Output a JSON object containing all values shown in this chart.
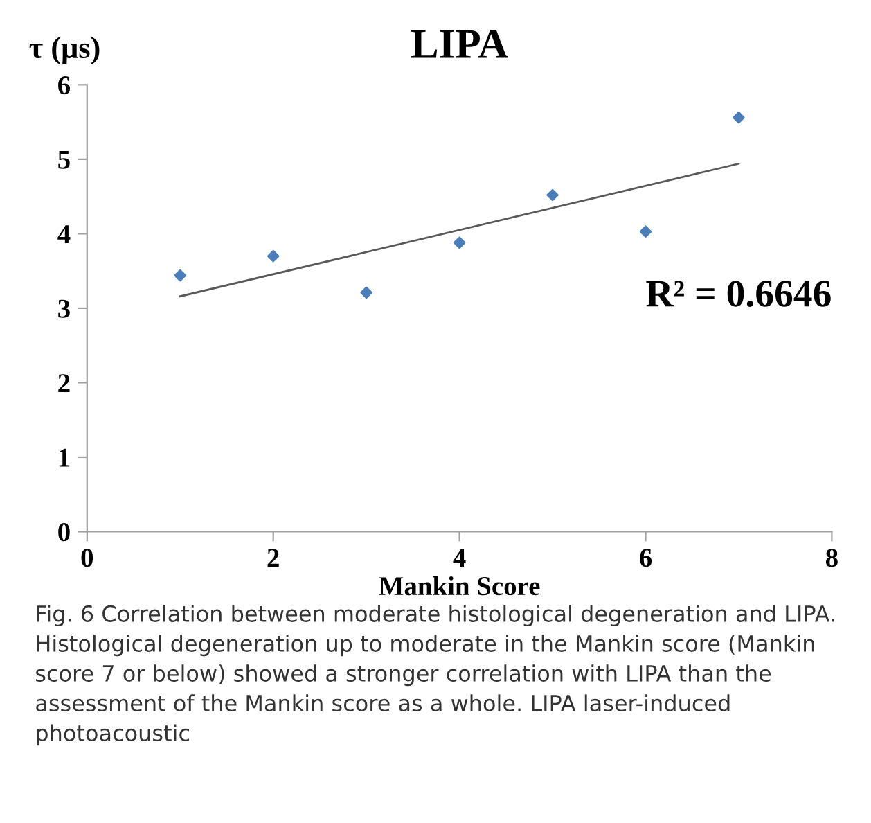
{
  "chart_data": {
    "type": "scatter",
    "title": "LIPA",
    "xlabel": "Mankin Score",
    "ylabel": "τ (μs)",
    "xlim": [
      0,
      8
    ],
    "xticks": [
      0,
      2,
      4,
      6,
      8
    ],
    "ylim": [
      0,
      6
    ],
    "yticks": [
      0,
      1,
      2,
      3,
      4,
      5,
      6
    ],
    "grid": false,
    "series": [
      {
        "color": "#4a7ebb",
        "marker": "diamond",
        "x": [
          1,
          2,
          3,
          4,
          5,
          6,
          7
        ],
        "values": [
          3.44,
          3.7,
          3.21,
          3.88,
          4.52,
          4.03,
          5.56
        ]
      },
      {
        "type": "line",
        "color": "#595959",
        "marker": "none",
        "x": [
          1,
          7
        ],
        "values": [
          3.16,
          4.94
        ]
      }
    ],
    "annotations": [
      "R² = 0.6646",
      "Fig. 6 Correlation between moderate histological degeneration and LIPA. Histological degeneration up to moderate in the Mankin score (Mankin score 7 or below) showed a stronger correlation with LIPA than the assessment of the Mankin score as a whole. LIPA laser-induced photoacoustic"
    ]
  }
}
